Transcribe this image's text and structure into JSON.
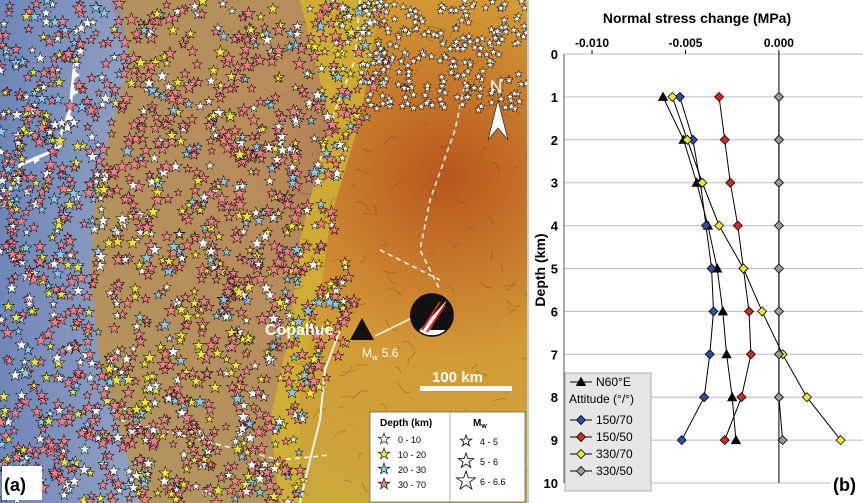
{
  "panel_a": {
    "label": "(a)",
    "volcano_label": "Copahue",
    "magnitude_label": "M",
    "magnitude_sub": "w",
    "magnitude_value": "5.6",
    "scale_label": "100 km",
    "north_label": "N",
    "legend": {
      "depth_title": "Depth (km)",
      "depth_items": [
        {
          "label": "0 - 10",
          "color": "#ffffff"
        },
        {
          "label": "10 - 20",
          "color": "#f2e640"
        },
        {
          "label": "20 - 30",
          "color": "#8cc8ea"
        },
        {
          "label": "30 - 70",
          "color": "#ef7f86"
        }
      ],
      "mag_title": "M",
      "mag_title_sub": "w",
      "mag_items": [
        {
          "label": "4 - 5"
        },
        {
          "label": "5 - 6"
        },
        {
          "label": "6 - 6.6"
        }
      ]
    }
  },
  "chart_data": {
    "type": "line",
    "panel_label": "(b)",
    "title": "Normal stress change (MPa)",
    "xlabel": "Normal stress change (MPa)",
    "ylabel": "Depth (km)",
    "xlim": [
      -0.0115,
      0.0045
    ],
    "ylim": [
      0,
      10
    ],
    "x_ticks": [
      -0.01,
      -0.005,
      0.0
    ],
    "x_tick_labels": [
      "-0.010",
      "-0.005",
      "0.000"
    ],
    "y_ticks": [
      0,
      1,
      2,
      3,
      4,
      5,
      6,
      7,
      8,
      9,
      10
    ],
    "y_inverted": true,
    "x_axis_position": "top",
    "grid": "horizontal",
    "legend_position": "bottom-left",
    "legend_subtitle": "Attitude (°/°)",
    "depth": [
      1,
      2,
      3,
      4,
      5,
      6,
      7,
      8,
      9
    ],
    "series": [
      {
        "name": "N60°E",
        "marker": "triangle",
        "color": "#000000",
        "x": [
          -0.0062,
          -0.0051,
          -0.0044,
          -0.0038,
          -0.0033,
          -0.003,
          -0.0028,
          -0.0025,
          -0.0023
        ]
      },
      {
        "name": "150/70",
        "marker": "diamond",
        "color": "#2e4fa8",
        "x": [
          -0.0053,
          -0.0046,
          -0.0042,
          -0.0039,
          -0.0036,
          -0.0035,
          -0.0037,
          -0.004,
          -0.0052
        ]
      },
      {
        "name": "150/50",
        "marker": "diamond",
        "color": "#d42a1e",
        "x": [
          -0.0032,
          -0.0029,
          -0.0026,
          -0.0022,
          -0.0019,
          -0.0016,
          -0.0015,
          -0.002,
          -0.0029
        ]
      },
      {
        "name": "330/70",
        "marker": "diamond",
        "color": "#f0e630",
        "x": [
          -0.0057,
          -0.0049,
          -0.0041,
          -0.0032,
          -0.0019,
          -0.0009,
          0.0002,
          0.0015,
          0.0033
        ]
      },
      {
        "name": "330/50",
        "marker": "diamond",
        "color": "#9a9a9a",
        "x": [
          0.0,
          0.0,
          0.0,
          0.0,
          0.0,
          0.0,
          0.0,
          0.0,
          0.0002
        ]
      }
    ]
  }
}
